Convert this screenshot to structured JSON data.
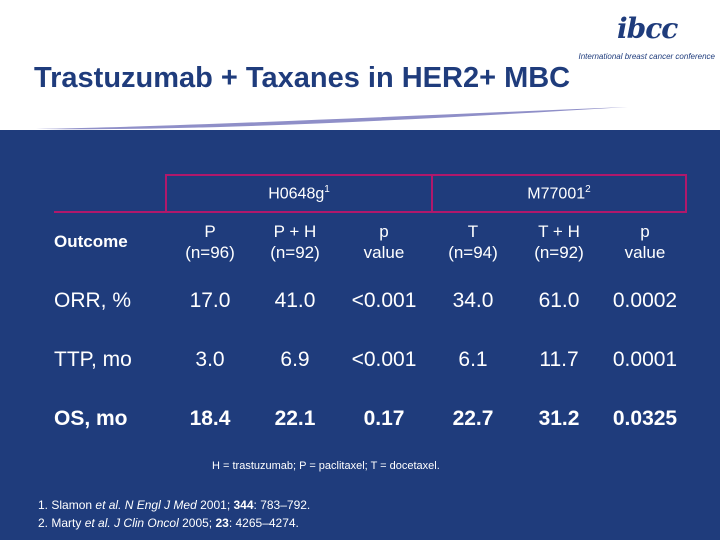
{
  "title": "Trastuzumab + Taxanes in HER2+ MBC",
  "logo": {
    "mark": "ibcc",
    "subtitle": "International breast cancer conference"
  },
  "table": {
    "groups": [
      {
        "label": "H0648g",
        "sup": "1"
      },
      {
        "label": "M77001",
        "sup": "2"
      }
    ],
    "outcome_header": "Outcome",
    "columns": [
      {
        "line1": "P",
        "line2": "(n=96)"
      },
      {
        "line1": "P + H",
        "line2": "(n=92)"
      },
      {
        "line1": "p",
        "line2": "value"
      },
      {
        "line1": "T",
        "line2": "(n=94)"
      },
      {
        "line1": "T + H",
        "line2": "(n=92)"
      },
      {
        "line1": "p",
        "line2": "value"
      }
    ],
    "rows": [
      {
        "label": "ORR, %",
        "values": [
          "17.0",
          "41.0",
          "<0.001",
          "34.0",
          "61.0",
          "0.0002"
        ]
      },
      {
        "label": "TTP, mo",
        "values": [
          "3.0",
          "6.9",
          "<0.001",
          "6.1",
          "11.7",
          "0.0001"
        ]
      },
      {
        "label": "OS, mo",
        "values": [
          "18.4",
          "22.1",
          "0.17",
          "22.7",
          "31.2",
          "0.0325"
        ]
      }
    ]
  },
  "footnote": "H = trastuzumab; P = paclitaxel; T = docetaxel.",
  "references": [
    {
      "num": "1.",
      "authors": "Slamon",
      "etal": "et al.",
      "journal": "N Engl J Med",
      "year": "2001;",
      "vol": "344",
      "pages": ": 783–792."
    },
    {
      "num": "2.",
      "authors": "Marty",
      "etal": "et al.",
      "journal": "J Clin Oncol",
      "year": "2005;",
      "vol": "23",
      "pages": ": 4265–4274."
    }
  ]
}
